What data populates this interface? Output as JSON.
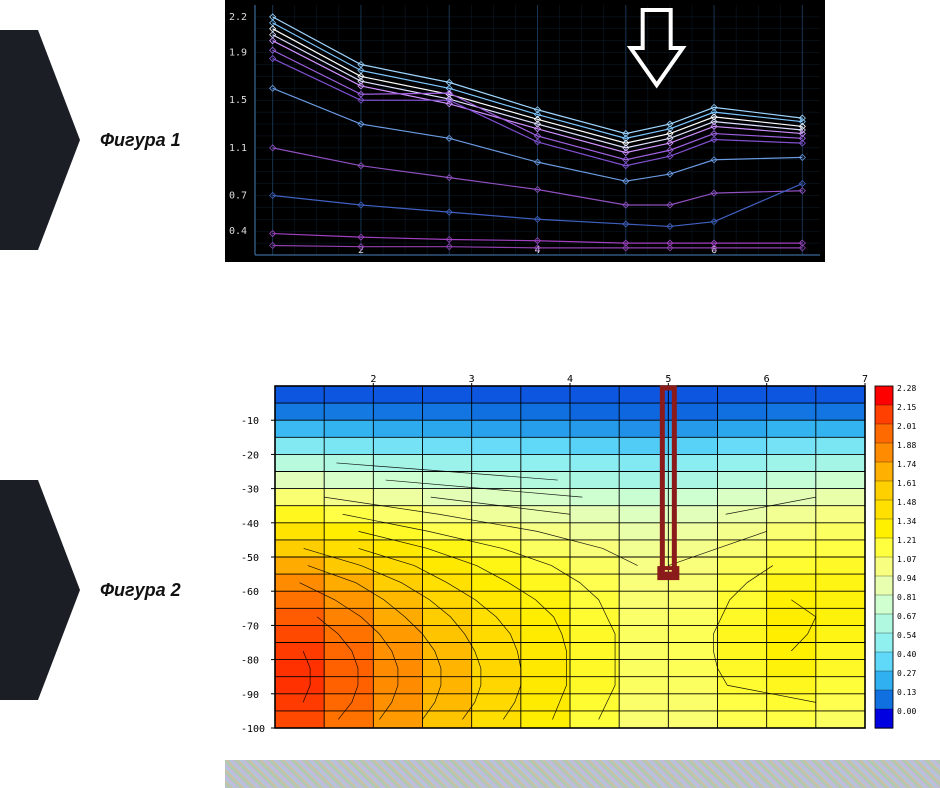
{
  "figure1": {
    "label": "Фигура 1",
    "background": "#000000",
    "grid_color": "#1a3a5a",
    "axis_color": "#3a6a9a",
    "text_color": "#dddddd",
    "y_ticks": [
      "2.2",
      "1.9",
      "1.5",
      "1.1",
      "0.7",
      "0.4"
    ],
    "y_values": [
      2.2,
      1.9,
      1.5,
      1.1,
      0.7,
      0.4
    ],
    "y_min": 0.2,
    "y_max": 2.3,
    "x_ticks": [
      "2",
      "4",
      "6"
    ],
    "x_values": [
      2,
      4,
      6
    ],
    "x_min": 0.8,
    "x_max": 7.2,
    "arrow": {
      "x": 5.35,
      "color": "#ffffff"
    },
    "lines": [
      {
        "color": "#9fd6ff",
        "y": [
          2.2,
          1.8,
          1.65,
          1.42,
          1.22,
          1.3,
          1.44,
          1.35
        ]
      },
      {
        "color": "#7fc8ff",
        "y": [
          2.15,
          1.75,
          1.6,
          1.38,
          1.18,
          1.26,
          1.4,
          1.32
        ]
      },
      {
        "color": "#ffffff",
        "y": [
          2.1,
          1.7,
          1.55,
          1.34,
          1.14,
          1.22,
          1.36,
          1.28
        ]
      },
      {
        "color": "#e0e0ff",
        "y": [
          2.05,
          1.66,
          1.51,
          1.3,
          1.1,
          1.18,
          1.32,
          1.25
        ]
      },
      {
        "color": "#d090ff",
        "y": [
          2.0,
          1.62,
          1.47,
          1.26,
          1.06,
          1.14,
          1.28,
          1.22
        ]
      },
      {
        "color": "#a060e0",
        "y": [
          1.92,
          1.55,
          1.56,
          1.2,
          1.0,
          1.08,
          1.22,
          1.18
        ]
      },
      {
        "color": "#8050d0",
        "y": [
          1.85,
          1.5,
          1.5,
          1.15,
          0.95,
          1.03,
          1.17,
          1.14
        ]
      },
      {
        "color": "#6a9ae0",
        "y": [
          1.6,
          1.3,
          1.18,
          0.98,
          0.82,
          0.88,
          1.0,
          1.02
        ]
      },
      {
        "color": "#9050c0",
        "y": [
          1.1,
          0.95,
          0.85,
          0.75,
          0.62,
          0.62,
          0.72,
          0.74
        ]
      },
      {
        "color": "#4060c0",
        "y": [
          0.7,
          0.62,
          0.56,
          0.5,
          0.46,
          0.44,
          0.48,
          0.8
        ]
      },
      {
        "color": "#a040c0",
        "y": [
          0.38,
          0.35,
          0.33,
          0.32,
          0.3,
          0.3,
          0.3,
          0.3
        ]
      },
      {
        "color": "#9040b0",
        "y": [
          0.28,
          0.27,
          0.27,
          0.26,
          0.26,
          0.26,
          0.26,
          0.26
        ]
      }
    ],
    "x_points": [
      1,
      2,
      3,
      4,
      5,
      5.5,
      6,
      7
    ],
    "font_size_pt": 9
  },
  "figure2": {
    "label": "Фигура 2",
    "background": "#ffffff",
    "grid_color": "#000000",
    "text_color": "#000000",
    "x_ticks": [
      "2",
      "3",
      "4",
      "5",
      "6",
      "7"
    ],
    "x_values": [
      2,
      3,
      4,
      5,
      6,
      7
    ],
    "x_min": 1.0,
    "x_max": 7.0,
    "y_ticks": [
      "-10",
      "-20",
      "-30",
      "-40",
      "-50",
      "-60",
      "-70",
      "-80",
      "-90",
      "-100"
    ],
    "y_values": [
      -10,
      -20,
      -30,
      -40,
      -50,
      -60,
      -70,
      -80,
      -90,
      -100
    ],
    "y_row_boundaries": [
      0,
      -5,
      -10,
      -15,
      -20,
      -25,
      -30,
      -35,
      -40,
      -45,
      -50,
      -55,
      -60,
      -65,
      -70,
      -75,
      -80,
      -85,
      -90,
      -95,
      -100
    ],
    "y_min": -100,
    "y_max": 0,
    "legend": {
      "values": [
        "2.28",
        "2.15",
        "2.01",
        "1.88",
        "1.74",
        "1.61",
        "1.48",
        "1.34",
        "1.21",
        "1.07",
        "0.94",
        "0.81",
        "0.67",
        "0.54",
        "0.40",
        "0.27",
        "0.13",
        "0.00"
      ],
      "colors": [
        "#ff0000",
        "#ff4000",
        "#ff6a00",
        "#ff8c00",
        "#ffb000",
        "#ffd000",
        "#ffe000",
        "#fff000",
        "#ffff40",
        "#f8ff80",
        "#e8ffb0",
        "#d0ffd0",
        "#b0f8e0",
        "#90f0f0",
        "#60d8f8",
        "#30b0f0",
        "#1070e0",
        "#0000e0"
      ],
      "font_size_pt": 7
    },
    "grid_x_cols": [
      1.0,
      1.5,
      2.0,
      2.5,
      3.0,
      3.5,
      4.0,
      4.5,
      5.0,
      5.5,
      6.0,
      6.5,
      7.0
    ],
    "data": [
      [
        0.1,
        0.1,
        0.1,
        0.1,
        0.1,
        0.1,
        0.1,
        0.1,
        0.1,
        0.1,
        0.1,
        0.1
      ],
      [
        0.15,
        0.15,
        0.14,
        0.14,
        0.13,
        0.13,
        0.12,
        0.12,
        0.12,
        0.13,
        0.14,
        0.14
      ],
      [
        0.3,
        0.28,
        0.26,
        0.25,
        0.24,
        0.23,
        0.22,
        0.2,
        0.22,
        0.25,
        0.28,
        0.28
      ],
      [
        0.5,
        0.48,
        0.46,
        0.44,
        0.42,
        0.4,
        0.38,
        0.36,
        0.38,
        0.42,
        0.46,
        0.48
      ],
      [
        0.7,
        0.66,
        0.62,
        0.58,
        0.56,
        0.54,
        0.52,
        0.5,
        0.52,
        0.56,
        0.6,
        0.62
      ],
      [
        0.9,
        0.84,
        0.8,
        0.76,
        0.72,
        0.68,
        0.64,
        0.62,
        0.64,
        0.7,
        0.76,
        0.8
      ],
      [
        1.1,
        1.04,
        0.98,
        0.92,
        0.88,
        0.84,
        0.8,
        0.78,
        0.8,
        0.86,
        0.92,
        0.96
      ],
      [
        1.28,
        1.2,
        1.12,
        1.06,
        1.0,
        0.96,
        0.92,
        0.88,
        0.9,
        0.96,
        1.02,
        1.06
      ],
      [
        1.46,
        1.36,
        1.26,
        1.18,
        1.12,
        1.06,
        1.0,
        0.96,
        0.98,
        1.04,
        1.1,
        1.14
      ],
      [
        1.62,
        1.5,
        1.4,
        1.3,
        1.22,
        1.14,
        1.08,
        1.02,
        1.04,
        1.1,
        1.18,
        1.2
      ],
      [
        1.76,
        1.64,
        1.52,
        1.4,
        1.3,
        1.22,
        1.14,
        1.06,
        1.08,
        1.16,
        1.24,
        1.26
      ],
      [
        1.88,
        1.76,
        1.62,
        1.48,
        1.36,
        1.28,
        1.18,
        1.08,
        1.1,
        1.2,
        1.3,
        1.3
      ],
      [
        1.98,
        1.84,
        1.7,
        1.56,
        1.42,
        1.32,
        1.22,
        1.1,
        1.12,
        1.24,
        1.34,
        1.32
      ],
      [
        2.06,
        1.92,
        1.76,
        1.62,
        1.48,
        1.36,
        1.24,
        1.12,
        1.14,
        1.26,
        1.36,
        1.32
      ],
      [
        2.12,
        1.98,
        1.82,
        1.66,
        1.52,
        1.38,
        1.26,
        1.14,
        1.16,
        1.28,
        1.36,
        1.3
      ],
      [
        2.16,
        2.02,
        1.86,
        1.7,
        1.54,
        1.4,
        1.26,
        1.14,
        1.16,
        1.28,
        1.34,
        1.28
      ],
      [
        2.18,
        2.04,
        1.88,
        1.72,
        1.56,
        1.4,
        1.26,
        1.14,
        1.16,
        1.26,
        1.32,
        1.26
      ],
      [
        2.18,
        2.04,
        1.88,
        1.72,
        1.56,
        1.4,
        1.26,
        1.14,
        1.14,
        1.24,
        1.28,
        1.22
      ],
      [
        2.16,
        2.02,
        1.86,
        1.7,
        1.54,
        1.38,
        1.24,
        1.12,
        1.12,
        1.2,
        1.24,
        1.18
      ],
      [
        2.12,
        1.98,
        1.82,
        1.66,
        1.5,
        1.36,
        1.22,
        1.1,
        1.1,
        1.18,
        1.2,
        1.14
      ]
    ],
    "marker": {
      "x": 5.0,
      "y_top": 0,
      "y_bot": -55,
      "color": "#8b1a1a",
      "stroke": 5
    },
    "font_size_pt": 9
  }
}
